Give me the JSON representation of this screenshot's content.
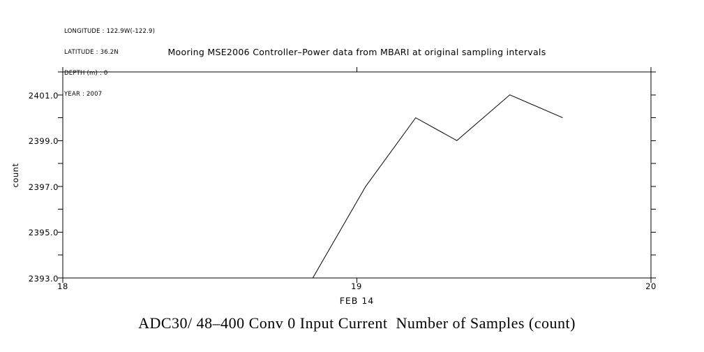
{
  "meta": {
    "longitude": "LONGITUDE : 122.9W(-122.9)",
    "latitude": "LATITUDE : 36.2N",
    "depth": "DEPTH (m) : 0",
    "year": "YEAR : 2007"
  },
  "title": "Mooring MSE2006 Controller–Power data from MBARI at original sampling intervals",
  "caption": "ADC30/ 48–400 Conv 0 Input Current  Number of Samples (count)",
  "chart_data": {
    "type": "line",
    "title": "Mooring MSE2006 Controller–Power data from MBARI at original sampling intervals",
    "xlabel": "FEB 14",
    "ylabel": "count",
    "x": [
      18.85,
      19.03,
      19.2,
      19.34,
      19.52,
      19.7
    ],
    "y": [
      2393,
      2397,
      2400,
      2399,
      2401,
      2400
    ],
    "xlim": [
      18,
      20
    ],
    "ylim": [
      2393,
      2402
    ],
    "x_ticks": [
      18,
      19,
      20
    ],
    "x_tick_labels": [
      "18",
      "19",
      "20"
    ],
    "y_major_ticks": [
      2401,
      2399,
      2397,
      2395,
      2393
    ],
    "y_tick_labels": [
      "2401.0",
      "2399.0",
      "2397.0",
      "2395.0",
      "2393.0"
    ],
    "y_minor_step": 1,
    "grid": false,
    "line_color": "#000000",
    "frame_color": "#000000",
    "background_color": "#ffffff"
  }
}
